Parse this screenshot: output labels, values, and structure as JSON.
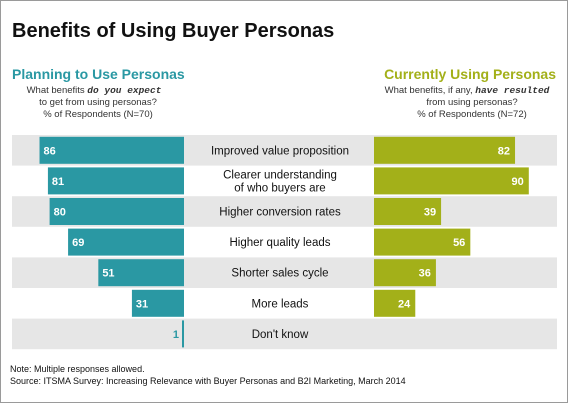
{
  "chart_data": {
    "type": "bar",
    "title": "Benefits of Using Buyer Personas",
    "categories": [
      "Improved value proposition",
      "Clearer understanding of who buyers are",
      "Higher conversion rates",
      "Higher quality leads",
      "Shorter sales cycle",
      "More leads",
      "Don't know"
    ],
    "category_lines": [
      [
        "Improved value proposition"
      ],
      [
        "Clearer understanding",
        "of who buyers are"
      ],
      [
        "Higher conversion rates"
      ],
      [
        "Higher quality leads"
      ],
      [
        "Shorter sales cycle"
      ],
      [
        "More leads"
      ],
      [
        "Don't know"
      ]
    ],
    "left_panel": {
      "heading": "Planning to Use Personas",
      "question_pre": "What benefits ",
      "question_em": "do you expect",
      "question_post": "to get from using personas?",
      "respondents": "% of Respondents (N=70)",
      "color": "#2a98a3"
    },
    "right_panel": {
      "heading": "Currently Using Personas",
      "question_pre": "What benefits, if any, ",
      "question_em": "have resulted",
      "question_post": "from using personas?",
      "respondents": "% of Respondents (N=72)",
      "color": "#a3b019"
    },
    "series": [
      {
        "name": "Planning to Use Personas",
        "values": [
          86,
          81,
          80,
          69,
          51,
          31,
          1
        ]
      },
      {
        "name": "Currently Using Personas",
        "values": [
          82,
          90,
          39,
          56,
          36,
          24,
          null
        ]
      }
    ],
    "xlim": [
      0,
      100
    ],
    "row_band_color": "#e6e6e6",
    "heading_color_left": "#2a98a3",
    "heading_color_right": "#a3b019"
  },
  "footnotes": {
    "note": "Note: Multiple responses allowed.",
    "source": "Source: ITSMA Survey: Increasing Relevance with Buyer Personas and B2I Marketing, March 2014"
  }
}
